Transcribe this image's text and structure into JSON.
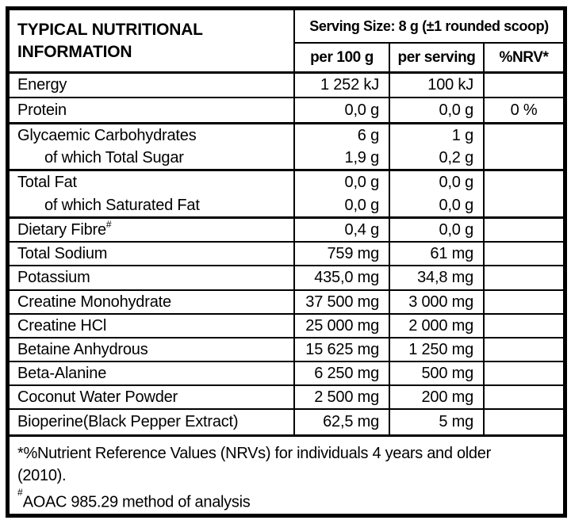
{
  "table": {
    "title": "TYPICAL NUTRITIONAL INFORMATION",
    "serving_size": "Serving Size: 8 g (±1 rounded scoop)",
    "columns": {
      "per100": "per 100 g",
      "serving": "per serving",
      "nrv": "%NRV*"
    }
  },
  "rows": [
    {
      "label": "Energy",
      "per100": "1 252 kJ",
      "serving": "100 kJ",
      "nrv": ""
    },
    {
      "label": "Protein",
      "per100": "0,0 g",
      "serving": "0,0 g",
      "nrv": "0 %"
    },
    {
      "label": "Glycaemic Carbohydrates",
      "per100": "6 g",
      "serving": "1 g",
      "nrv": ""
    },
    {
      "label": "of which Total Sugar",
      "per100": "1,9 g",
      "serving": "0,2 g",
      "nrv": ""
    },
    {
      "label": "Total Fat",
      "per100": "0,0 g",
      "serving": "0,0 g",
      "nrv": ""
    },
    {
      "label": "of which Saturated Fat",
      "per100": "0,0 g",
      "serving": "0,0 g",
      "nrv": ""
    },
    {
      "label": "Dietary Fibre",
      "sup": "#",
      "per100": "0,4 g",
      "serving": "0,0 g",
      "nrv": ""
    },
    {
      "label": "Total Sodium",
      "per100": "759 mg",
      "serving": "61 mg",
      "nrv": ""
    },
    {
      "label": "Potassium",
      "per100": "435,0 mg",
      "serving": "34,8 mg",
      "nrv": ""
    },
    {
      "label": "Creatine Monohydrate",
      "per100": "37 500 mg",
      "serving": "3 000 mg",
      "nrv": ""
    },
    {
      "label": "Creatine HCl",
      "per100": "25 000 mg",
      "serving": "2 000 mg",
      "nrv": ""
    },
    {
      "label": "Betaine Anhydrous",
      "per100": "15 625 mg",
      "serving": "1 250 mg",
      "nrv": ""
    },
    {
      "label": "Beta-Alanine",
      "per100": "6 250 mg",
      "serving": "500 mg",
      "nrv": ""
    },
    {
      "label": "Coconut Water Powder",
      "per100": "2 500 mg",
      "serving": "200 mg",
      "nrv": ""
    },
    {
      "label": "Bioperine(Black Pepper Extract)",
      "per100": "62,5 mg",
      "serving": "5 mg",
      "nrv": ""
    }
  ],
  "footnotes": {
    "nrv": "*%Nutrient Reference Values (NRVs) for individuals 4 years and older (2010).",
    "aoac_sup": "#",
    "aoac": "AOAC 985.29 method of analysis"
  }
}
